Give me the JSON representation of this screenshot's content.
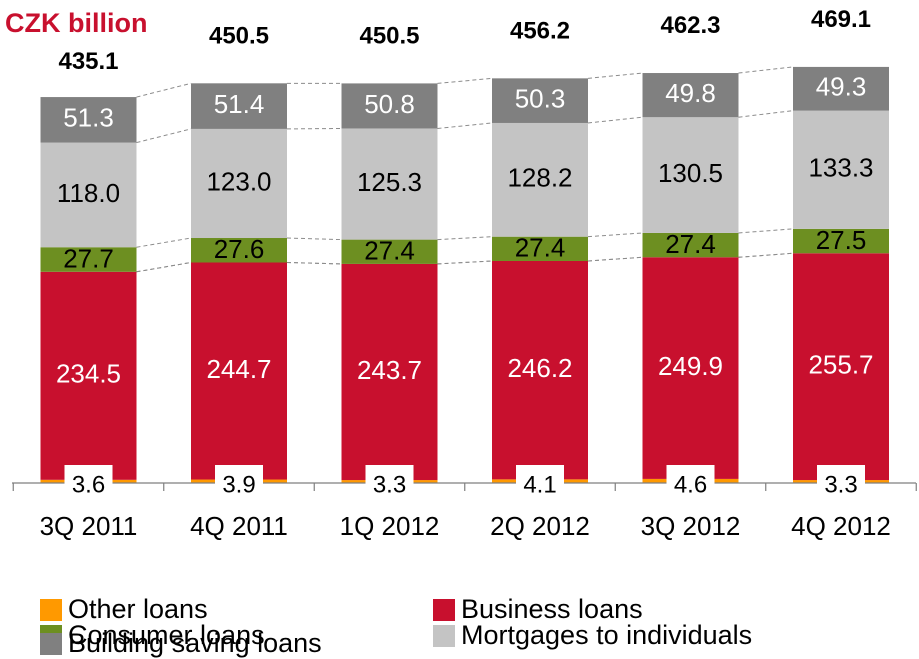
{
  "unit_label": "CZK billion",
  "colors": {
    "Other loans": "#ff9900",
    "Business loans": "#c8102e",
    "Consumer loans": "#6d8f21",
    "Mortgages to individuals": "#c4c4c4",
    "Building saving loans": "#808080"
  },
  "chart_data": {
    "type": "bar",
    "stacked": true,
    "categories": [
      "3Q 2011",
      "4Q 2011",
      "1Q 2012",
      "2Q 2012",
      "3Q 2012",
      "4Q 2012"
    ],
    "series": [
      {
        "name": "Other loans",
        "values": [
          3.6,
          3.9,
          3.3,
          4.1,
          4.6,
          3.3
        ]
      },
      {
        "name": "Business loans",
        "values": [
          234.5,
          244.7,
          243.7,
          246.2,
          249.9,
          255.7
        ]
      },
      {
        "name": "Consumer loans",
        "values": [
          27.7,
          27.6,
          27.4,
          27.4,
          27.4,
          27.5
        ]
      },
      {
        "name": "Mortgages to individuals",
        "values": [
          118.0,
          123.0,
          125.3,
          128.2,
          130.5,
          133.3
        ]
      },
      {
        "name": "Building saving loans",
        "values": [
          51.3,
          51.4,
          50.8,
          50.3,
          49.8,
          49.3
        ]
      }
    ],
    "totals": [
      435.1,
      450.5,
      450.5,
      456.2,
      462.3,
      469.1
    ],
    "legend_placement": "bottom",
    "grid": false
  }
}
